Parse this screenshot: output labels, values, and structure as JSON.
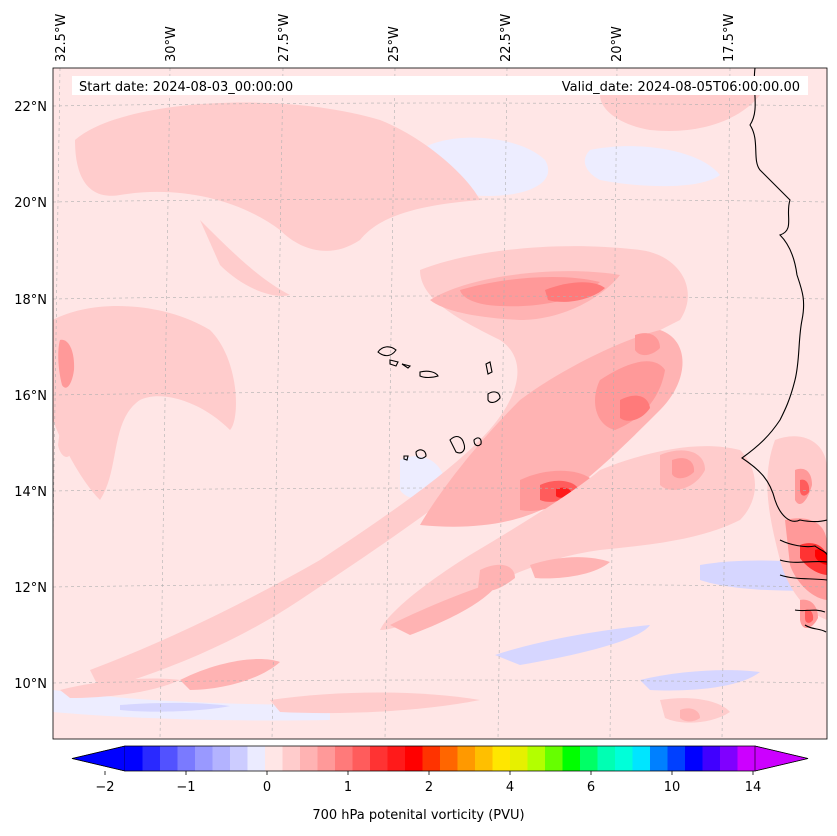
{
  "header": {
    "start_date": "Start date: 2024-08-03_00:00:00",
    "valid_date": "Valid_date: 2024-08-05T06:00:00.00"
  },
  "map": {
    "lon_labels": [
      "32.5°W",
      "30°W",
      "27.5°W",
      "25°W",
      "22.5°W",
      "20°W",
      "17.5°W"
    ],
    "lat_labels": [
      "22°N",
      "20°N",
      "18°N",
      "16°N",
      "14°N",
      "12°N",
      "10°N"
    ],
    "field": "700 hPa potenital vorticity (PVU)"
  },
  "colorbar": {
    "label": "700 hPa potenital vorticity (PVU)",
    "tick_labels": [
      "−2",
      "−1",
      "0",
      "1",
      "2",
      "4",
      "6",
      "10",
      "14"
    ],
    "colors": [
      "#0000ff",
      "#2929ff",
      "#5252ff",
      "#7a7aff",
      "#9999ff",
      "#b3b3ff",
      "#ccccff",
      "#ebebff",
      "#ffe6e6",
      "#ffcccc",
      "#ffb3b3",
      "#ff9999",
      "#ff7a7a",
      "#ff5c5c",
      "#ff3333",
      "#ff1a1a",
      "#ff0000",
      "#ff3300",
      "#ff6600",
      "#ff9900",
      "#ffbf00",
      "#ffe600",
      "#e6f000",
      "#b3ff00",
      "#66ff00",
      "#00ff00",
      "#00ff66",
      "#00ffb3",
      "#00ffd9",
      "#00e5ff",
      "#0080ff",
      "#0040ff",
      "#0000ff",
      "#4000ff",
      "#8000ff",
      "#cc00ff"
    ],
    "under_color": "#0000ff",
    "over_color": "#cc00ff"
  }
}
